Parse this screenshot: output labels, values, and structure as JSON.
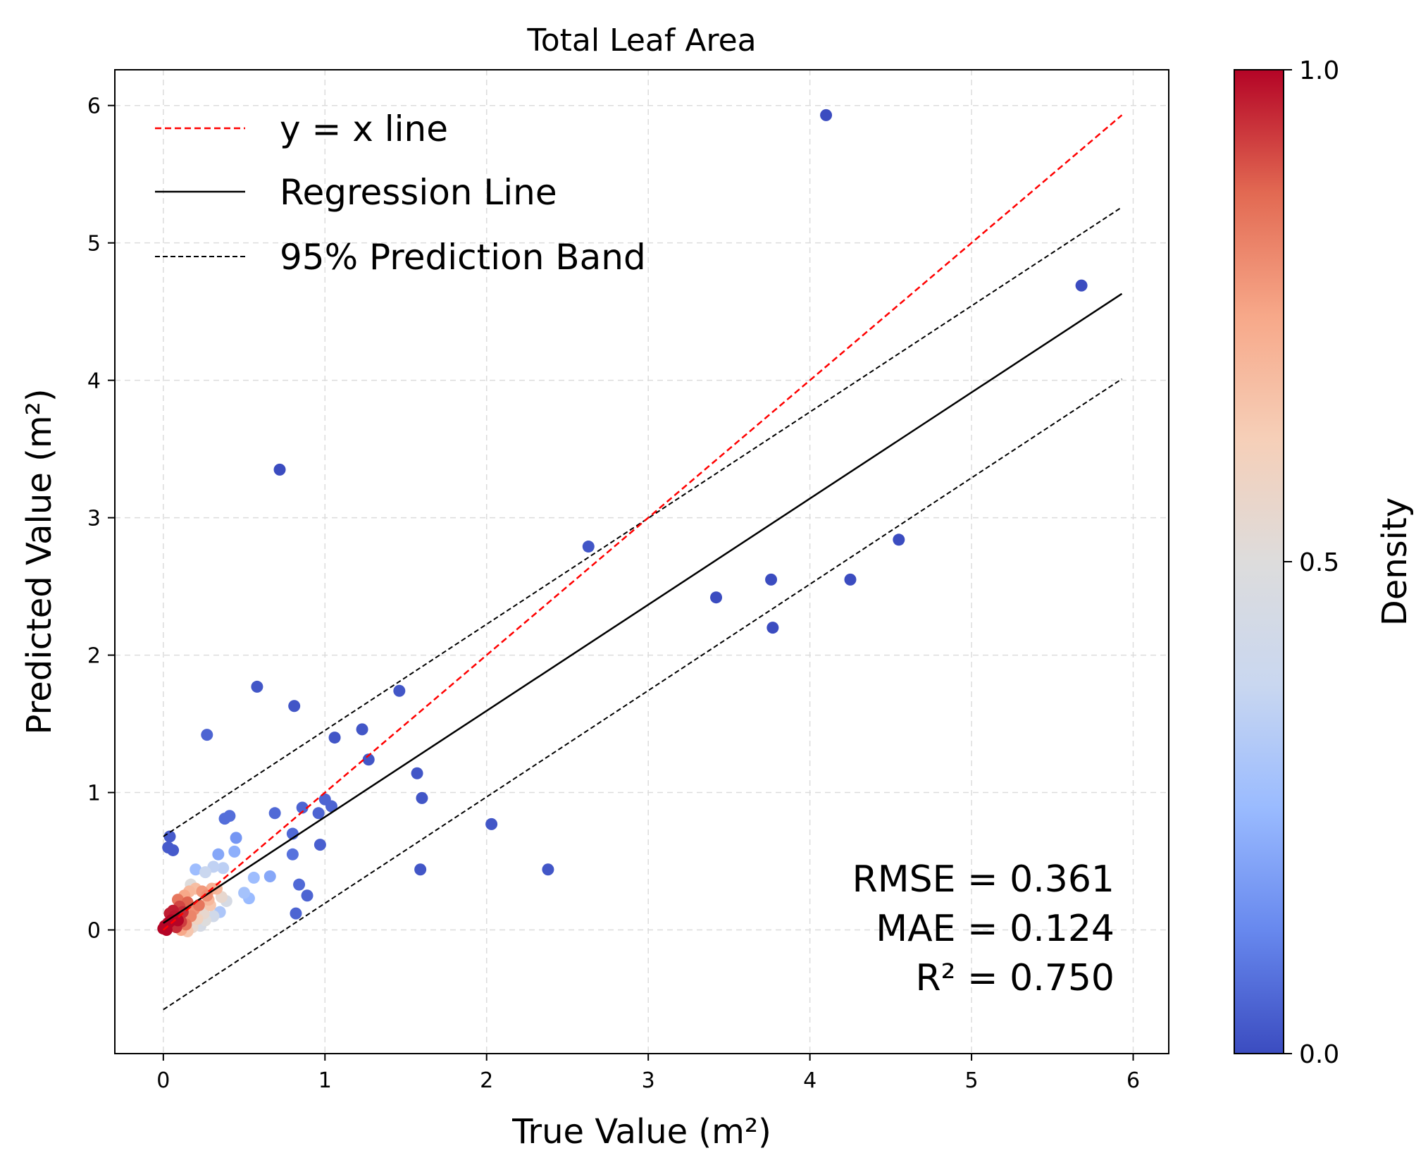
{
  "chart_data": {
    "type": "scatter",
    "title": "Total Leaf Area",
    "xlabel": "True Value (m²)",
    "ylabel": "Predicted Value (m²)",
    "xlim": [
      -0.3,
      6.22
    ],
    "ylim": [
      -0.9,
      6.26
    ],
    "xticks": [
      0,
      1,
      2,
      3,
      4,
      5,
      6
    ],
    "yticks": [
      0,
      1,
      2,
      3,
      4,
      5,
      6
    ],
    "xtick_labels": [
      "0",
      "1",
      "2",
      "3",
      "4",
      "5",
      "6"
    ],
    "ytick_labels": [
      "0",
      "1",
      "2",
      "3",
      "4",
      "5",
      "6"
    ],
    "grid": true,
    "legend_position": "upper-left",
    "legend": [
      {
        "label": "y = x line",
        "style": "dashed",
        "color": "#ff0000"
      },
      {
        "label": "Regression Line",
        "style": "solid",
        "color": "#000000"
      },
      {
        "label": "95% Prediction Band",
        "style": "dashed",
        "color": "#000000"
      }
    ],
    "lines": {
      "identity": {
        "x": [
          0,
          5.93
        ],
        "y": [
          0,
          5.93
        ],
        "color": "#ff0000"
      },
      "regression": {
        "x": [
          0,
          5.93
        ],
        "y": [
          0.05,
          4.63
        ],
        "color": "#000000"
      },
      "band_upper": {
        "x": [
          0,
          5.93
        ],
        "y": [
          0.68,
          5.26
        ],
        "color": "#000000"
      },
      "band_lower": {
        "x": [
          0,
          5.93
        ],
        "y": [
          -0.58,
          4.01
        ],
        "color": "#000000"
      }
    },
    "annotations": [
      "RMSE = 0.361",
      "MAE = 0.124",
      "R² = 0.750"
    ],
    "colorbar": {
      "label": "Density",
      "range": [
        0,
        1
      ],
      "ticks": [
        0.0,
        0.5,
        1.0
      ],
      "tick_labels": [
        "0.0",
        "0.5",
        "1.0"
      ],
      "colormap": "coolwarm",
      "colors": [
        "#3b4cc0",
        "#6788ee",
        "#9abbff",
        "#c9d7f0",
        "#dddcdc",
        "#f6cfb8",
        "#f7a889",
        "#e26952",
        "#b40426"
      ]
    },
    "points": [
      [
        4.1,
        5.93,
        0.0
      ],
      [
        5.68,
        4.69,
        0.0
      ],
      [
        0.72,
        3.35,
        0.0
      ],
      [
        2.63,
        2.79,
        0.02
      ],
      [
        4.55,
        2.84,
        0.0
      ],
      [
        3.76,
        2.55,
        0.0
      ],
      [
        4.25,
        2.55,
        0.0
      ],
      [
        3.42,
        2.42,
        0.0
      ],
      [
        3.77,
        2.2,
        0.0
      ],
      [
        0.58,
        1.77,
        0.02
      ],
      [
        1.46,
        1.74,
        0.02
      ],
      [
        0.81,
        1.63,
        0.02
      ],
      [
        1.23,
        1.46,
        0.02
      ],
      [
        0.27,
        1.42,
        0.05
      ],
      [
        1.06,
        1.4,
        0.02
      ],
      [
        1.27,
        1.24,
        0.02
      ],
      [
        1.57,
        1.14,
        0.02
      ],
      [
        1.6,
        0.96,
        0.02
      ],
      [
        1.0,
        0.95,
        0.05
      ],
      [
        1.04,
        0.9,
        0.05
      ],
      [
        0.86,
        0.89,
        0.05
      ],
      [
        0.96,
        0.85,
        0.05
      ],
      [
        0.69,
        0.85,
        0.06
      ],
      [
        0.41,
        0.83,
        0.07
      ],
      [
        0.38,
        0.81,
        0.07
      ],
      [
        2.03,
        0.77,
        0.02
      ],
      [
        0.8,
        0.7,
        0.06
      ],
      [
        0.04,
        0.68,
        0.03
      ],
      [
        0.45,
        0.67,
        0.16
      ],
      [
        0.97,
        0.62,
        0.04
      ],
      [
        0.03,
        0.6,
        0.03
      ],
      [
        0.06,
        0.58,
        0.03
      ],
      [
        0.44,
        0.57,
        0.22
      ],
      [
        0.8,
        0.55,
        0.08
      ],
      [
        0.34,
        0.55,
        0.2
      ],
      [
        1.59,
        0.44,
        0.02
      ],
      [
        2.38,
        0.44,
        0.02
      ],
      [
        0.2,
        0.44,
        0.26
      ],
      [
        0.66,
        0.39,
        0.2
      ],
      [
        0.56,
        0.38,
        0.26
      ],
      [
        0.31,
        0.46,
        0.35
      ],
      [
        0.26,
        0.42,
        0.38
      ],
      [
        0.37,
        0.45,
        0.34
      ],
      [
        0.84,
        0.33,
        0.06
      ],
      [
        0.5,
        0.27,
        0.28
      ],
      [
        0.89,
        0.25,
        0.05
      ],
      [
        0.53,
        0.23,
        0.25
      ],
      [
        0.39,
        0.21,
        0.45
      ],
      [
        0.82,
        0.12,
        0.05
      ],
      [
        0.35,
        0.13,
        0.3
      ],
      [
        0.17,
        0.33,
        0.5
      ],
      [
        0.3,
        0.3,
        0.72
      ],
      [
        0.33,
        0.3,
        0.7
      ],
      [
        0.24,
        0.28,
        0.78
      ],
      [
        0.27,
        0.25,
        0.8
      ],
      [
        0.22,
        0.18,
        0.85
      ],
      [
        0.15,
        0.2,
        0.88
      ],
      [
        0.1,
        0.17,
        0.92
      ],
      [
        0.12,
        0.13,
        0.95
      ],
      [
        0.07,
        0.1,
        0.98
      ],
      [
        0.05,
        0.07,
        1.0
      ],
      [
        0.03,
        0.05,
        1.0
      ],
      [
        0.01,
        0.03,
        1.0
      ],
      [
        0.02,
        0.0,
        1.0
      ],
      [
        0.08,
        0.02,
        0.95
      ],
      [
        0.11,
        0.06,
        0.93
      ],
      [
        0.14,
        0.04,
        0.85
      ],
      [
        0.17,
        0.1,
        0.82
      ],
      [
        0.19,
        0.15,
        0.8
      ],
      [
        0.21,
        0.08,
        0.6
      ],
      [
        0.25,
        0.12,
        0.55
      ],
      [
        0.29,
        0.18,
        0.65
      ],
      [
        0.18,
        0.02,
        0.55
      ],
      [
        0.23,
        0.03,
        0.45
      ],
      [
        0.26,
        0.07,
        0.5
      ],
      [
        0.13,
        0.25,
        0.75
      ],
      [
        0.09,
        0.22,
        0.85
      ],
      [
        0.06,
        0.14,
        0.97
      ],
      [
        0.04,
        0.12,
        0.97
      ],
      [
        0.16,
        0.28,
        0.7
      ],
      [
        0.31,
        0.1,
        0.42
      ],
      [
        0.28,
        0.22,
        0.7
      ],
      [
        0.36,
        0.24,
        0.55
      ],
      [
        0.2,
        0.3,
        0.68
      ],
      [
        0.11,
        0.0,
        0.75
      ],
      [
        0.15,
        -0.01,
        0.65
      ],
      [
        0.0,
        0.01,
        1.0
      ],
      [
        0.09,
        0.07,
        1.0
      ]
    ]
  }
}
